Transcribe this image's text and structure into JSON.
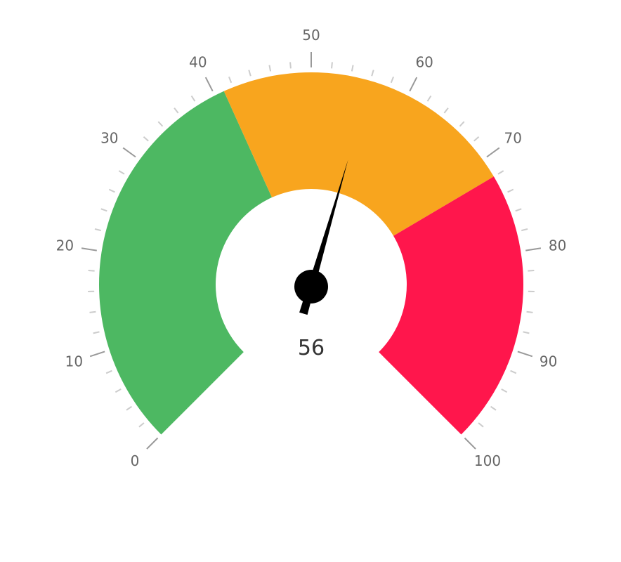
{
  "chart_data": {
    "type": "gauge",
    "min": 0,
    "max": 100,
    "value": 56,
    "value_label": "56",
    "major_tick_labels": [
      "0",
      "10",
      "20",
      "30",
      "40",
      "50",
      "60",
      "70",
      "80",
      "90",
      "100"
    ],
    "bands": [
      {
        "from": 0,
        "to": 41,
        "color": "#4DB862"
      },
      {
        "from": 41,
        "to": 72,
        "color": "#F8A51E"
      },
      {
        "from": 72,
        "to": 100,
        "color": "#FF164C"
      }
    ],
    "needle_color": "#000000",
    "major_tick_color": "#999999",
    "minor_tick_color": "#cccccc"
  }
}
